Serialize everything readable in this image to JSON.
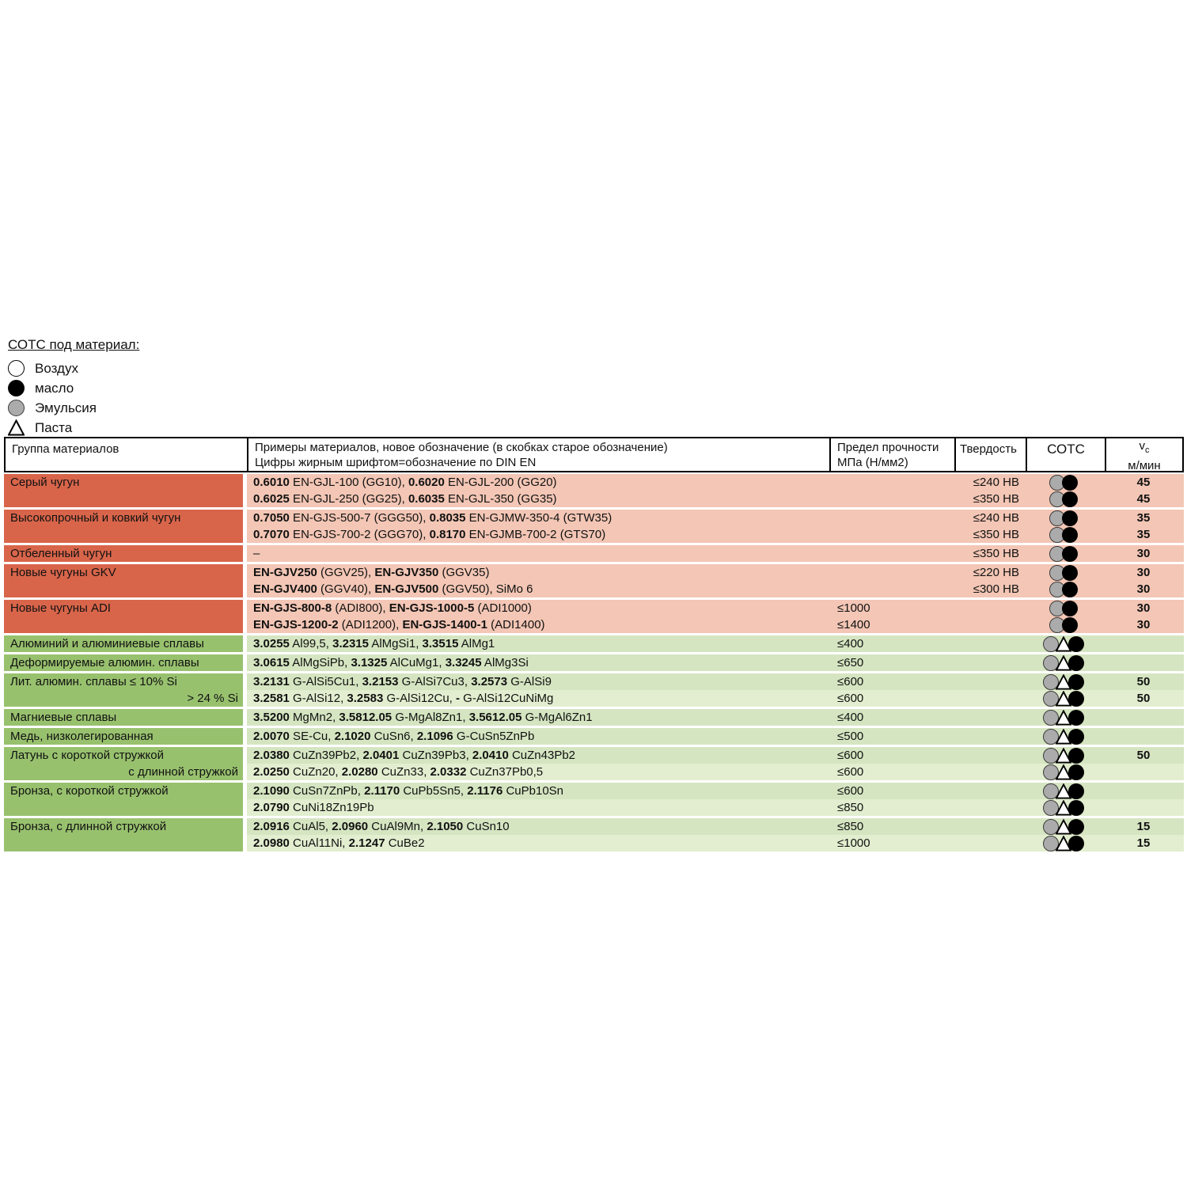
{
  "legend": {
    "title": "СОТС под материал:",
    "items": [
      {
        "icon": "circle-white",
        "label": "Воздух"
      },
      {
        "icon": "circle-black",
        "label": "масло"
      },
      {
        "icon": "circle-gray",
        "label": "Эмульсия"
      },
      {
        "icon": "triangle",
        "label": "Паста"
      }
    ]
  },
  "table": {
    "headers": {
      "group": "Группа материалов",
      "examples_line1": "Примеры материалов, новое обозначение (в скобках старое обозначение)",
      "examples_line2": "Цифры жирным шрифтом=обозначение по DIN EN",
      "strength_line1": "Предел прочности",
      "strength_line2": "МПа (Н/мм2)",
      "hardness": "Твердость",
      "coolant": "СОТС",
      "speed_v": "v",
      "speed_sub": "c",
      "speed_unit": "м/мин"
    },
    "colors": {
      "red_group": "#d8654a",
      "red_row": "#f3c6b5",
      "green_group": "#98c16e",
      "green_row_a": "#d5e5c1",
      "green_row_b": "#e2eecf"
    },
    "groups": [
      {
        "section": "red",
        "label": "Серый чугун",
        "label2": "",
        "rows": [
          {
            "example": [
              [
                "0.6010",
                1
              ],
              [
                " EN-GJL-100 (GG10), ",
                0
              ],
              [
                "0.6020",
                1
              ],
              [
                " EN-GJL-200 (GG20)",
                0
              ]
            ],
            "strength": "",
            "hardness": "≤240 HB",
            "cotc": [
              "circle-gray",
              "circle-black"
            ],
            "vc": "45"
          },
          {
            "example": [
              [
                "0.6025",
                1
              ],
              [
                " EN-GJL-250 (GG25), ",
                0
              ],
              [
                "0.6035",
                1
              ],
              [
                " EN-GJL-350 (GG35)",
                0
              ]
            ],
            "strength": "",
            "hardness": "≤350 HB",
            "cotc": [
              "circle-gray",
              "circle-black"
            ],
            "vc": "45"
          }
        ]
      },
      {
        "section": "red",
        "label": "Высокопрочный и ковкий чугун",
        "label2": "",
        "rows": [
          {
            "example": [
              [
                "0.7050",
                1
              ],
              [
                " EN-GJS-500-7 (GGG50), ",
                0
              ],
              [
                "0.8035",
                1
              ],
              [
                " EN-GJMW-350-4 (GTW35)",
                0
              ]
            ],
            "strength": "",
            "hardness": "≤240 HB",
            "cotc": [
              "circle-gray",
              "circle-black"
            ],
            "vc": "35"
          },
          {
            "example": [
              [
                "0.7070",
                1
              ],
              [
                " EN-GJS-700-2 (GGG70), ",
                0
              ],
              [
                "0.8170",
                1
              ],
              [
                " EN-GJMB-700-2 (GTS70)",
                0
              ]
            ],
            "strength": "",
            "hardness": "≤350 HB",
            "cotc": [
              "circle-gray",
              "circle-black"
            ],
            "vc": "35"
          }
        ]
      },
      {
        "section": "red",
        "label": "Отбеленный чугун",
        "label2": "",
        "rows": [
          {
            "example": [
              [
                "–",
                0
              ]
            ],
            "strength": "",
            "hardness": "≤350 HB",
            "cotc": [
              "circle-gray",
              "circle-black"
            ],
            "vc": "30"
          }
        ]
      },
      {
        "section": "red",
        "label": "Новые чугуны GKV",
        "label2": "",
        "rows": [
          {
            "example": [
              [
                "EN-GJV250",
                1
              ],
              [
                " (GGV25), ",
                0
              ],
              [
                "EN-GJV350",
                1
              ],
              [
                " (GGV35)",
                0
              ]
            ],
            "strength": "",
            "hardness": "≤220 HB",
            "cotc": [
              "circle-gray",
              "circle-black"
            ],
            "vc": "30"
          },
          {
            "example": [
              [
                "EN-GJV400",
                1
              ],
              [
                " (GGV40), ",
                0
              ],
              [
                "EN-GJV500",
                1
              ],
              [
                " (GGV50), SiMo 6",
                0
              ]
            ],
            "strength": "",
            "hardness": "≤300 HB",
            "cotc": [
              "circle-gray",
              "circle-black"
            ],
            "vc": "30"
          }
        ]
      },
      {
        "section": "red",
        "label": "Новые чугуны ADI",
        "label2": "",
        "rows": [
          {
            "example": [
              [
                "EN-GJS-800-8",
                1
              ],
              [
                " (ADI800), ",
                0
              ],
              [
                "EN-GJS-1000-5",
                1
              ],
              [
                " (ADI1000)",
                0
              ]
            ],
            "strength": "≤1000",
            "hardness": "",
            "cotc": [
              "circle-gray",
              "circle-black"
            ],
            "vc": "30"
          },
          {
            "example": [
              [
                "EN-GJS-1200-2",
                1
              ],
              [
                " (ADI1200), ",
                0
              ],
              [
                "EN-GJS-1400-1",
                1
              ],
              [
                " (ADI1400)",
                0
              ]
            ],
            "strength": "≤1400",
            "hardness": "",
            "cotc": [
              "circle-gray",
              "circle-black"
            ],
            "vc": "30"
          }
        ]
      },
      {
        "section": "green",
        "label": "Алюминий и алюминиевые сплавы",
        "label2": "",
        "rows": [
          {
            "example": [
              [
                "3.0255",
                1
              ],
              [
                " Al99,5, ",
                0
              ],
              [
                "3.2315",
                1
              ],
              [
                " AlMgSi1, ",
                0
              ],
              [
                "3.3515",
                1
              ],
              [
                " AlMg1",
                0
              ]
            ],
            "strength": "≤400",
            "hardness": "",
            "cotc": [
              "circle-gray",
              "triangle",
              "circle-black"
            ],
            "vc": ""
          }
        ]
      },
      {
        "section": "green",
        "label": "Деформируемые алюмин. сплавы",
        "label2": "",
        "rows": [
          {
            "example": [
              [
                "3.0615",
                1
              ],
              [
                " AlMgSiPb, ",
                0
              ],
              [
                "3.1325",
                1
              ],
              [
                " AlCuMg1, ",
                0
              ],
              [
                "3.3245",
                1
              ],
              [
                " AlMg3Si",
                0
              ]
            ],
            "strength": "≤650",
            "hardness": "",
            "cotc": [
              "circle-gray",
              "triangle",
              "circle-black"
            ],
            "vc": ""
          }
        ]
      },
      {
        "section": "green",
        "label": "Лит. алюмин. сплавы ≤ 10% Si",
        "label2": "> 24 % Si",
        "rows": [
          {
            "example": [
              [
                "3.2131",
                1
              ],
              [
                " G-AlSi5Cu1, ",
                0
              ],
              [
                "3.2153",
                1
              ],
              [
                " G-AlSi7Cu3, ",
                0
              ],
              [
                "3.2573",
                1
              ],
              [
                " G-AlSi9",
                0
              ]
            ],
            "strength": "≤600",
            "hardness": "",
            "cotc": [
              "circle-gray",
              "triangle",
              "circle-black"
            ],
            "vc": "50"
          },
          {
            "example": [
              [
                "3.2581",
                1
              ],
              [
                " G-AlSi12, ",
                0
              ],
              [
                "3.2583",
                1
              ],
              [
                " G-AlSi12Cu, ",
                0
              ],
              [
                "-",
                1
              ],
              [
                " G-AlSi12CuNiMg",
                0
              ]
            ],
            "strength": "≤600",
            "hardness": "",
            "cotc": [
              "circle-gray",
              "triangle",
              "circle-black"
            ],
            "vc": "50"
          }
        ]
      },
      {
        "section": "green",
        "label": "Магниевые сплавы",
        "label2": "",
        "rows": [
          {
            "example": [
              [
                "3.5200",
                1
              ],
              [
                " MgMn2, ",
                0
              ],
              [
                "3.5812.05",
                1
              ],
              [
                " G-MgAl8Zn1, ",
                0
              ],
              [
                "3.5612.05",
                1
              ],
              [
                " G-MgAl6Zn1",
                0
              ]
            ],
            "strength": "≤400",
            "hardness": "",
            "cotc": [
              "circle-gray",
              "triangle",
              "circle-black"
            ],
            "vc": ""
          }
        ]
      },
      {
        "section": "green",
        "label": "Медь, низколегированная",
        "label2": "",
        "rows": [
          {
            "example": [
              [
                "2.0070",
                1
              ],
              [
                " SE-Cu, ",
                0
              ],
              [
                "2.1020",
                1
              ],
              [
                " CuSn6, ",
                0
              ],
              [
                "2.1096",
                1
              ],
              [
                " G-CuSn5ZnPb",
                0
              ]
            ],
            "strength": "≤500",
            "hardness": "",
            "cotc": [
              "circle-gray",
              "triangle",
              "circle-black"
            ],
            "vc": ""
          }
        ]
      },
      {
        "section": "green",
        "label": "Латунь с короткой стружкой",
        "label2": "с длинной стружкой",
        "rows": [
          {
            "example": [
              [
                "2.0380",
                1
              ],
              [
                " CuZn39Pb2, ",
                0
              ],
              [
                "2.0401",
                1
              ],
              [
                " CuZn39Pb3, ",
                0
              ],
              [
                "2.0410",
                1
              ],
              [
                " CuZn43Pb2",
                0
              ]
            ],
            "strength": "≤600",
            "hardness": "",
            "cotc": [
              "circle-gray",
              "triangle",
              "circle-black"
            ],
            "vc": "50"
          },
          {
            "example": [
              [
                "2.0250",
                1
              ],
              [
                " CuZn20, ",
                0
              ],
              [
                "2.0280",
                1
              ],
              [
                " CuZn33, ",
                0
              ],
              [
                "2.0332",
                1
              ],
              [
                " CuZn37Pb0,5",
                0
              ]
            ],
            "strength": "≤600",
            "hardness": "",
            "cotc": [
              "circle-gray",
              "triangle",
              "circle-black"
            ],
            "vc": ""
          }
        ]
      },
      {
        "section": "green",
        "label": "Бронза, с короткой стружкой",
        "label2": "",
        "rows": [
          {
            "example": [
              [
                "2.1090",
                1
              ],
              [
                " CuSn7ZnPb, ",
                0
              ],
              [
                "2.1170",
                1
              ],
              [
                " CuPb5Sn5, ",
                0
              ],
              [
                "2.1176",
                1
              ],
              [
                " CuPb10Sn",
                0
              ]
            ],
            "strength": "≤600",
            "hardness": "",
            "cotc": [
              "circle-gray",
              "triangle",
              "circle-black"
            ],
            "vc": ""
          },
          {
            "example": [
              [
                "2.0790",
                1
              ],
              [
                " CuNi18Zn19Pb",
                0
              ]
            ],
            "strength": "≤850",
            "hardness": "",
            "cotc": [
              "circle-gray",
              "triangle",
              "circle-black"
            ],
            "vc": ""
          }
        ]
      },
      {
        "section": "green",
        "label": "Бронза, с длинной стружкой",
        "label2": "",
        "rows": [
          {
            "example": [
              [
                "2.0916",
                1
              ],
              [
                " CuAl5, ",
                0
              ],
              [
                "2.0960",
                1
              ],
              [
                " CuAl9Mn, ",
                0
              ],
              [
                "2.1050",
                1
              ],
              [
                " CuSn10",
                0
              ]
            ],
            "strength": "≤850",
            "hardness": "",
            "cotc": [
              "circle-gray",
              "triangle",
              "circle-black"
            ],
            "vc": "15"
          },
          {
            "example": [
              [
                "2.0980",
                1
              ],
              [
                " CuAl11Ni, ",
                0
              ],
              [
                "2.1247",
                1
              ],
              [
                " CuBe2",
                0
              ]
            ],
            "strength": "≤1000",
            "hardness": "",
            "cotc": [
              "circle-gray",
              "triangle",
              "circle-black"
            ],
            "vc": "15"
          }
        ]
      }
    ]
  }
}
